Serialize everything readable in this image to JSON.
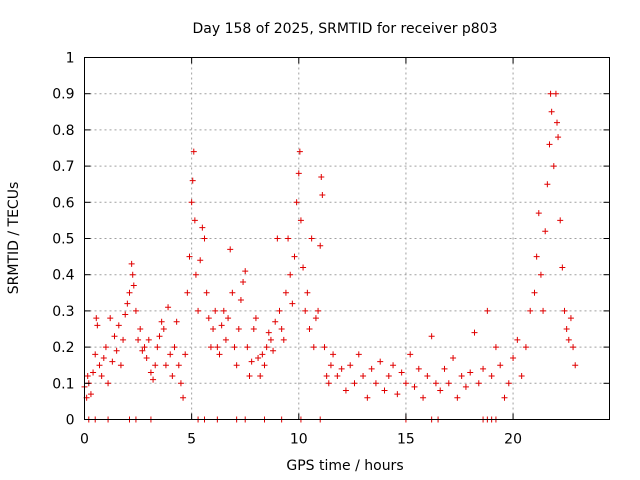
{
  "colors": {
    "marker": "#e00000",
    "grid": "#a0a0a0",
    "axis": "#000000",
    "background": "#ffffff"
  },
  "chart_data": {
    "type": "scatter",
    "title": "Day 158 of 2025, SRMTID for receiver p803",
    "xlabel": "GPS time / hours",
    "ylabel": "SRMTID / TECUs",
    "xlim": [
      0,
      24.5
    ],
    "ylim": [
      0,
      1
    ],
    "x_ticks": [
      0,
      5,
      10,
      15,
      20
    ],
    "x_tick_labels": [
      "0",
      "5",
      "10",
      "15",
      "20"
    ],
    "y_ticks": [
      0,
      0.1,
      0.2,
      0.3,
      0.4,
      0.5,
      0.6,
      0.7,
      0.8,
      0.9,
      1
    ],
    "y_tick_labels": [
      "0",
      "0.1",
      "0.2",
      "0.3",
      "0.4",
      "0.5",
      "0.6",
      "0.7",
      "0.8",
      "0.9",
      "1"
    ],
    "grid": true,
    "marker": "+",
    "series": [
      {
        "name": "SRMTID",
        "points": [
          [
            0.0,
            0.09
          ],
          [
            0.1,
            0.06
          ],
          [
            0.15,
            0.12
          ],
          [
            0.2,
            0.1
          ],
          [
            0.3,
            0.07
          ],
          [
            0.4,
            0.13
          ],
          [
            0.5,
            0.18
          ],
          [
            0.55,
            0.28
          ],
          [
            0.6,
            0.26
          ],
          [
            0.7,
            0.15
          ],
          [
            0.8,
            0.12
          ],
          [
            0.9,
            0.17
          ],
          [
            1.0,
            0.2
          ],
          [
            1.1,
            0.1
          ],
          [
            1.2,
            0.28
          ],
          [
            1.3,
            0.16
          ],
          [
            1.4,
            0.23
          ],
          [
            1.5,
            0.19
          ],
          [
            1.6,
            0.26
          ],
          [
            1.7,
            0.15
          ],
          [
            1.8,
            0.22
          ],
          [
            1.9,
            0.29
          ],
          [
            2.0,
            0.32
          ],
          [
            2.1,
            0.35
          ],
          [
            2.2,
            0.43
          ],
          [
            2.25,
            0.4
          ],
          [
            2.3,
            0.37
          ],
          [
            2.4,
            0.3
          ],
          [
            2.5,
            0.22
          ],
          [
            2.6,
            0.25
          ],
          [
            2.7,
            0.19
          ],
          [
            2.8,
            0.2
          ],
          [
            2.9,
            0.17
          ],
          [
            3.0,
            0.22
          ],
          [
            3.1,
            0.13
          ],
          [
            3.2,
            0.11
          ],
          [
            3.3,
            0.15
          ],
          [
            3.4,
            0.2
          ],
          [
            3.5,
            0.23
          ],
          [
            3.6,
            0.27
          ],
          [
            3.7,
            0.25
          ],
          [
            3.8,
            0.15
          ],
          [
            3.9,
            0.31
          ],
          [
            4.0,
            0.18
          ],
          [
            4.1,
            0.12
          ],
          [
            4.2,
            0.2
          ],
          [
            4.3,
            0.27
          ],
          [
            4.4,
            0.15
          ],
          [
            4.5,
            0.1
          ],
          [
            4.6,
            0.06
          ],
          [
            4.7,
            0.18
          ],
          [
            4.8,
            0.35
          ],
          [
            4.9,
            0.45
          ],
          [
            5.0,
            0.6
          ],
          [
            5.05,
            0.66
          ],
          [
            5.1,
            0.74
          ],
          [
            5.15,
            0.55
          ],
          [
            5.2,
            0.4
          ],
          [
            5.3,
            0.3
          ],
          [
            5.4,
            0.44
          ],
          [
            5.5,
            0.53
          ],
          [
            5.6,
            0.5
          ],
          [
            5.7,
            0.35
          ],
          [
            5.8,
            0.28
          ],
          [
            5.9,
            0.2
          ],
          [
            6.0,
            0.25
          ],
          [
            6.1,
            0.3
          ],
          [
            6.2,
            0.2
          ],
          [
            6.3,
            0.18
          ],
          [
            6.4,
            0.26
          ],
          [
            6.5,
            0.3
          ],
          [
            6.6,
            0.22
          ],
          [
            6.7,
            0.28
          ],
          [
            6.8,
            0.47
          ],
          [
            6.9,
            0.35
          ],
          [
            7.0,
            0.2
          ],
          [
            7.1,
            0.15
          ],
          [
            7.2,
            0.25
          ],
          [
            7.3,
            0.33
          ],
          [
            7.4,
            0.38
          ],
          [
            7.5,
            0.41
          ],
          [
            7.6,
            0.2
          ],
          [
            7.7,
            0.12
          ],
          [
            7.8,
            0.16
          ],
          [
            7.9,
            0.25
          ],
          [
            8.0,
            0.28
          ],
          [
            8.1,
            0.17
          ],
          [
            8.2,
            0.12
          ],
          [
            8.3,
            0.18
          ],
          [
            8.4,
            0.15
          ],
          [
            8.5,
            0.2
          ],
          [
            8.6,
            0.24
          ],
          [
            8.7,
            0.22
          ],
          [
            8.8,
            0.19
          ],
          [
            8.9,
            0.27
          ],
          [
            9.0,
            0.5
          ],
          [
            9.1,
            0.3
          ],
          [
            9.2,
            0.25
          ],
          [
            9.3,
            0.22
          ],
          [
            9.4,
            0.35
          ],
          [
            9.5,
            0.5
          ],
          [
            9.6,
            0.4
          ],
          [
            9.7,
            0.32
          ],
          [
            9.8,
            0.45
          ],
          [
            9.9,
            0.6
          ],
          [
            10.0,
            0.68
          ],
          [
            10.05,
            0.74
          ],
          [
            10.1,
            0.55
          ],
          [
            10.2,
            0.42
          ],
          [
            10.3,
            0.3
          ],
          [
            10.4,
            0.35
          ],
          [
            10.5,
            0.25
          ],
          [
            10.6,
            0.5
          ],
          [
            10.7,
            0.2
          ],
          [
            10.8,
            0.28
          ],
          [
            10.9,
            0.3
          ],
          [
            11.0,
            0.48
          ],
          [
            11.05,
            0.67
          ],
          [
            11.1,
            0.62
          ],
          [
            11.2,
            0.2
          ],
          [
            11.3,
            0.12
          ],
          [
            11.4,
            0.1
          ],
          [
            11.5,
            0.15
          ],
          [
            11.6,
            0.18
          ],
          [
            11.8,
            0.12
          ],
          [
            12.0,
            0.14
          ],
          [
            12.2,
            0.08
          ],
          [
            12.4,
            0.15
          ],
          [
            12.6,
            0.1
          ],
          [
            12.8,
            0.18
          ],
          [
            13.0,
            0.12
          ],
          [
            13.2,
            0.06
          ],
          [
            13.4,
            0.14
          ],
          [
            13.6,
            0.1
          ],
          [
            13.8,
            0.16
          ],
          [
            14.0,
            0.08
          ],
          [
            14.2,
            0.12
          ],
          [
            14.4,
            0.15
          ],
          [
            14.6,
            0.07
          ],
          [
            14.8,
            0.13
          ],
          [
            15.0,
            0.1
          ],
          [
            15.2,
            0.18
          ],
          [
            15.4,
            0.09
          ],
          [
            15.6,
            0.14
          ],
          [
            15.8,
            0.06
          ],
          [
            16.0,
            0.12
          ],
          [
            16.2,
            0.23
          ],
          [
            16.4,
            0.1
          ],
          [
            16.6,
            0.08
          ],
          [
            16.8,
            0.14
          ],
          [
            17.0,
            0.1
          ],
          [
            17.2,
            0.17
          ],
          [
            17.4,
            0.06
          ],
          [
            17.6,
            0.12
          ],
          [
            17.8,
            0.09
          ],
          [
            18.0,
            0.13
          ],
          [
            18.2,
            0.24
          ],
          [
            18.4,
            0.1
          ],
          [
            18.6,
            0.14
          ],
          [
            18.8,
            0.3
          ],
          [
            19.0,
            0.12
          ],
          [
            19.2,
            0.2
          ],
          [
            19.4,
            0.15
          ],
          [
            19.6,
            0.06
          ],
          [
            19.8,
            0.1
          ],
          [
            20.0,
            0.17
          ],
          [
            20.2,
            0.22
          ],
          [
            20.4,
            0.12
          ],
          [
            20.6,
            0.2
          ],
          [
            20.8,
            0.3
          ],
          [
            21.0,
            0.35
          ],
          [
            21.1,
            0.45
          ],
          [
            21.2,
            0.57
          ],
          [
            21.3,
            0.4
          ],
          [
            21.4,
            0.3
          ],
          [
            21.5,
            0.52
          ],
          [
            21.6,
            0.65
          ],
          [
            21.7,
            0.76
          ],
          [
            21.75,
            0.9
          ],
          [
            21.8,
            0.85
          ],
          [
            21.9,
            0.7
          ],
          [
            22.0,
            0.9
          ],
          [
            22.05,
            0.82
          ],
          [
            22.1,
            0.78
          ],
          [
            22.2,
            0.55
          ],
          [
            22.3,
            0.42
          ],
          [
            22.4,
            0.3
          ],
          [
            22.5,
            0.25
          ],
          [
            22.6,
            0.22
          ],
          [
            22.7,
            0.28
          ],
          [
            22.8,
            0.2
          ],
          [
            22.9,
            0.15
          ]
        ]
      }
    ],
    "zero_points_x": [
      0.2,
      0.5,
      1.1,
      2.1,
      2.4,
      3.1,
      5.3,
      5.6,
      6.2,
      7.1,
      7.5,
      8.4,
      9.2,
      10.1,
      11.0,
      15.0,
      16.2,
      16.5,
      18.6,
      18.8,
      19.0,
      19.2
    ]
  }
}
